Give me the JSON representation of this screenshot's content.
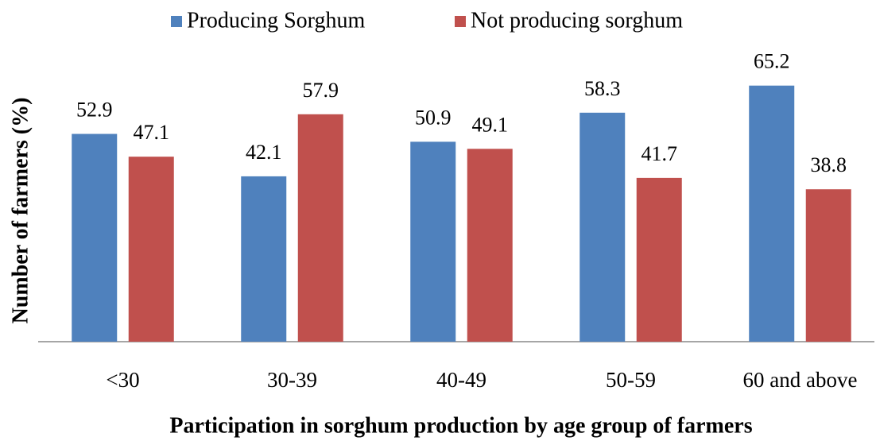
{
  "chart_data": {
    "type": "bar",
    "x_label": "Participation in sorghum production by age group of farmers",
    "y_label": "Number of farmers (%)",
    "categories": [
      "<30",
      "30-39",
      "40-49",
      "50-59",
      "60 and above"
    ],
    "series": [
      {
        "name": "Producing Sorghum",
        "color": "#4f81bd",
        "values": [
          52.9,
          42.1,
          50.9,
          58.3,
          65.2
        ]
      },
      {
        "name": "Not producing sorghum",
        "color": "#c0504d",
        "values": [
          47.1,
          57.9,
          49.1,
          41.7,
          38.8
        ]
      }
    ],
    "ylim": [
      0,
      70
    ],
    "legend": "top"
  }
}
